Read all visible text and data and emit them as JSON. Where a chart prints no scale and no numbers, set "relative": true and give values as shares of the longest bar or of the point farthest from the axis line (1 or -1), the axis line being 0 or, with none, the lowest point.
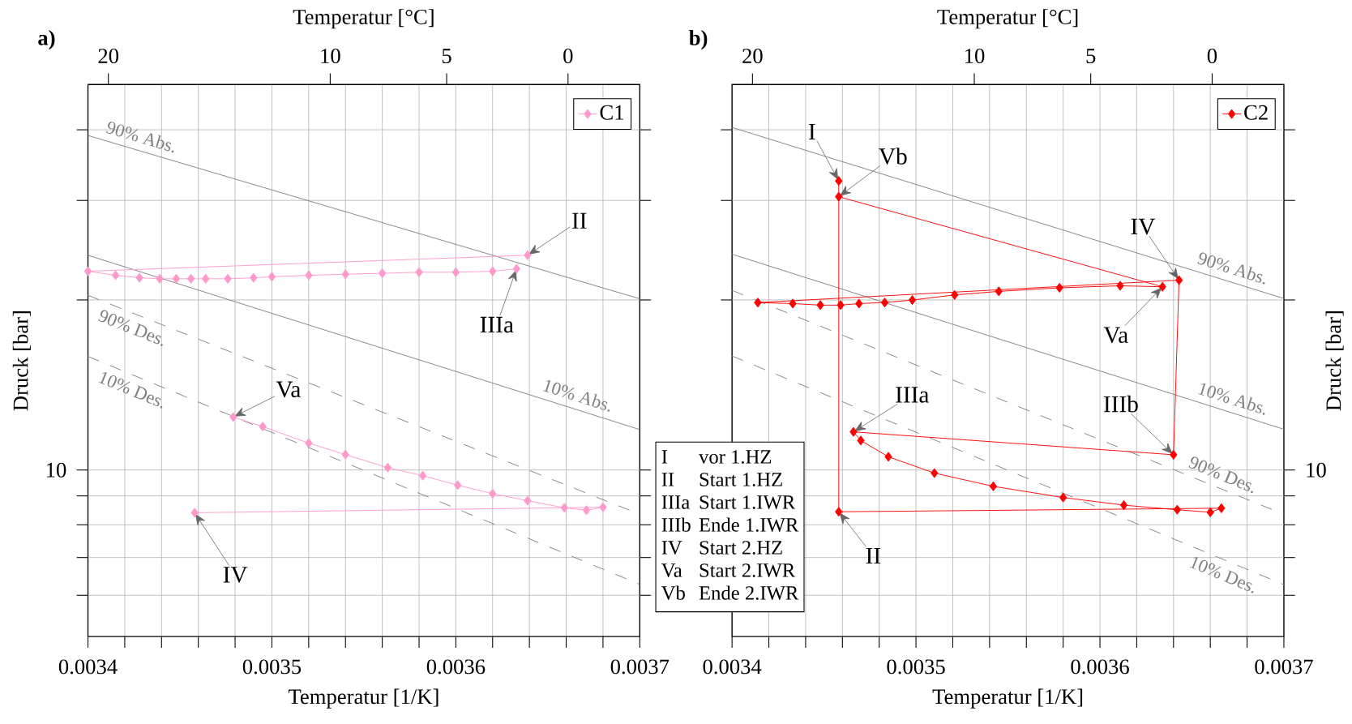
{
  "chart_data": [
    {
      "type": "line",
      "title": "a)",
      "xlabel": "Temperatur [1/K]",
      "ylabel": "Druck [bar]",
      "x2label": "Temperatur [°C]",
      "xlim": [
        0.0034,
        0.0037
      ],
      "relative": true,
      "grid": true,
      "legend": "top right",
      "marker": "diamond",
      "xticks": [
        0.0034,
        {
          "value": 0.00342,
          "label": null
        },
        {
          "value": 0.00344,
          "label": null
        },
        {
          "value": 0.00346,
          "label": null
        },
        {
          "value": 0.00348,
          "label": null
        },
        0.0035,
        {
          "value": 0.00352,
          "label": null
        },
        {
          "value": 0.00354,
          "label": null
        },
        {
          "value": 0.00356,
          "label": null
        },
        {
          "value": 0.00358,
          "label": null
        },
        0.0036,
        {
          "value": 0.00362,
          "label": null
        },
        {
          "value": 0.00364,
          "label": null
        },
        {
          "value": 0.00366,
          "label": null
        },
        {
          "value": 0.00368,
          "label": null
        },
        0.0037
      ],
      "series": [
        {
          "name": "90% Abs.",
          "color": "#808080",
          "marker": "none",
          "line_style": "solid",
          "x": [
            0.0034,
            0.0037
          ],
          "values": [
            1.0,
            0.674
          ]
        },
        {
          "name": "10% Abs.",
          "color": "#808080",
          "marker": "none",
          "line_style": "solid",
          "x": [
            0.0034,
            0.0037
          ],
          "values": [
            0.761,
            0.413
          ]
        },
        {
          "name": "90% Des.",
          "color": "#808080",
          "marker": "none",
          "line_style": "dashed",
          "x": [
            0.0034,
            0.0037
          ],
          "values": [
            0.681,
            0.244
          ]
        },
        {
          "name": "10% Des.",
          "color": "#808080",
          "marker": "none",
          "line_style": "dashed",
          "x": [
            0.0034,
            0.0037
          ],
          "values": [
            0.559,
            0.104
          ]
        },
        {
          "name": "C1",
          "color": "#ff99cc",
          "x": [
            0.003639,
            0.0034,
            0.003415,
            0.003428,
            0.003439,
            0.003448,
            0.003456,
            0.003464,
            0.003476,
            0.00349,
            0.0035,
            0.00352,
            0.00354,
            0.00356,
            0.00358,
            0.0036,
            0.00362,
            0.003633,
            0.00356,
            0.003479,
            0.003495,
            0.00352,
            0.00354,
            0.003563,
            0.003582,
            0.003601,
            0.00362,
            0.003639,
            0.003659,
            0.003671,
            0.00368,
            0.003458
          ],
          "values": [
            0.761,
            0.729,
            0.721,
            0.716,
            0.714,
            0.714,
            0.714,
            0.714,
            0.714,
            0.716,
            0.718,
            0.721,
            0.723,
            0.725,
            0.727,
            0.727,
            0.729,
            0.734,
            null,
            0.438,
            0.419,
            0.386,
            0.363,
            0.337,
            0.321,
            0.302,
            0.285,
            0.271,
            0.257,
            0.252,
            0.258,
            0.247
          ]
        }
      ],
      "annotations": [
        {
          "text": "II",
          "x": 0.003639,
          "y": 0.761
        },
        {
          "text": "IIIa",
          "x": 0.003633,
          "y": 0.734
        },
        {
          "text": "Va",
          "x": 0.003479,
          "y": 0.438
        },
        {
          "text": "IV",
          "x": 0.003458,
          "y": 0.247
        },
        "10",
        "20",
        "10",
        "5",
        "0"
      ]
    },
    {
      "type": "line",
      "title": "b)",
      "xlabel": "Temperatur [1/K]",
      "ylabel": "Druck [bar]",
      "x2label": "Temperatur [°C]",
      "xlim": [
        0.0034,
        0.0037
      ],
      "relative": true,
      "grid": true,
      "legend": "top right",
      "marker": "diamond",
      "xticks": [
        0.0034,
        {
          "value": 0.00342,
          "label": null
        },
        {
          "value": 0.00344,
          "label": null
        },
        {
          "value": 0.00346,
          "label": null
        },
        {
          "value": 0.00348,
          "label": null
        },
        0.0035,
        {
          "value": 0.00352,
          "label": null
        },
        {
          "value": 0.00354,
          "label": null
        },
        {
          "value": 0.00356,
          "label": null
        },
        {
          "value": 0.00358,
          "label": null
        },
        0.0036,
        {
          "value": 0.00362,
          "label": null
        },
        {
          "value": 0.00364,
          "label": null
        },
        {
          "value": 0.00366,
          "label": null
        },
        {
          "value": 0.00368,
          "label": null
        },
        0.0037
      ],
      "series": [
        {
          "name": "90% Abs.",
          "color": "#808080",
          "marker": "none",
          "line_style": "solid",
          "x": [
            0.0034,
            0.0037
          ],
          "values": [
            1.0,
            0.664
          ]
        },
        {
          "name": "10% Abs.",
          "color": "#808080",
          "marker": "none",
          "line_style": "solid",
          "x": [
            0.0034,
            0.0037
          ],
          "values": [
            0.751,
            0.407
          ]
        },
        {
          "name": "90% Des.",
          "color": "#808080",
          "marker": "none",
          "line_style": "dashed",
          "x": [
            0.0034,
            0.0037
          ],
          "values": [
            0.68,
            0.24
          ]
        },
        {
          "name": "10% Des.",
          "color": "#808080",
          "marker": "none",
          "line_style": "dashed",
          "x": [
            0.0034,
            0.0037
          ],
          "values": [
            0.551,
            0.102
          ]
        },
        {
          "name": "C2",
          "color": "#ff0000",
          "x": [
            0.003458,
            0.003458,
            0.003666,
            0.00366,
            0.003642,
            0.003613,
            0.00358,
            0.003542,
            0.00351,
            0.003485,
            0.00347,
            0.003466,
            0.00364,
            0.003643,
            0.003414,
            0.003433,
            0.003448,
            0.003459,
            0.003469,
            0.003483,
            0.003498,
            0.003521,
            0.003545,
            0.003578,
            0.003611,
            0.003634,
            0.003458
          ],
          "values": [
            0.895,
            0.245,
            0.252,
            0.244,
            0.249,
            0.258,
            0.273,
            0.295,
            0.321,
            0.353,
            0.385,
            0.402,
            0.357,
            0.7,
            0.656,
            0.654,
            0.651,
            0.651,
            0.654,
            0.656,
            0.661,
            0.671,
            0.678,
            0.685,
            0.689,
            0.687,
            0.864
          ]
        }
      ],
      "annotations": [
        {
          "text": "I",
          "x": 0.003458,
          "y": 0.895
        },
        {
          "text": "Vb",
          "x": 0.003458,
          "y": 0.864
        },
        {
          "text": "IV",
          "x": 0.003643,
          "y": 0.7
        },
        {
          "text": "Va",
          "x": 0.003634,
          "y": 0.687
        },
        {
          "text": "IIIa",
          "x": 0.003466,
          "y": 0.402
        },
        {
          "text": "IIIb",
          "x": 0.00364,
          "y": 0.357
        },
        {
          "text": "II",
          "x": 0.003458,
          "y": 0.245
        },
        "10",
        "20",
        "10",
        "5",
        "0",
        "I",
        "vor 1.HZ",
        "II",
        "Start 1.HZ",
        "IIIa",
        "Start 1.IWR",
        "IIIb",
        "Ende 1.IWR",
        "IV",
        "Start 2.HZ",
        "Va",
        "Start 2.IWR",
        "Vb",
        "Ende 2.IWR"
      ]
    }
  ]
}
